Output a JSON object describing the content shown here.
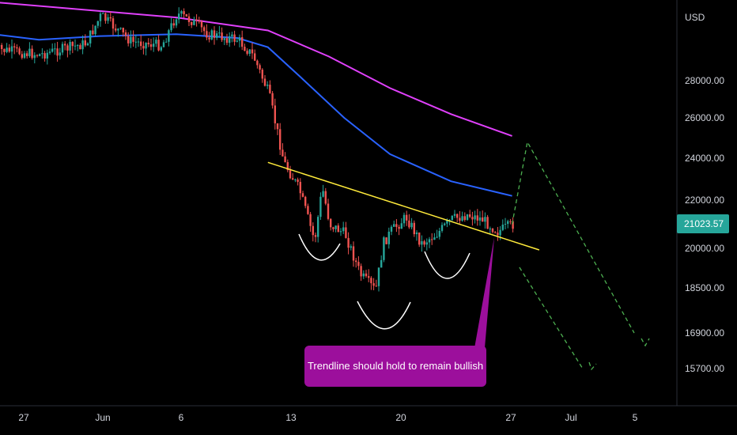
{
  "chart_data": {
    "type": "candlestick",
    "currency": "USD",
    "last_price": "21023.57",
    "y_ticks": [
      "28000.00",
      "26000.00",
      "24000.00",
      "22000.00",
      "20000.00",
      "18500.00",
      "16900.00",
      "15700.00"
    ],
    "x_ticks": [
      "27",
      "Jun",
      "6",
      "13",
      "20",
      "27",
      "Jul",
      "5"
    ],
    "annotation": "Trendline should hold to remain bullish",
    "colors": {
      "up": "#26a69a",
      "down": "#ef5350",
      "ma_fast": "#2962ff",
      "ma_slow": "#e040fb",
      "trendline": "#ffeb3b",
      "projection": "#4caf50",
      "callout": "#9c0f9c",
      "price_tag": "#26a69a"
    },
    "price_path": [
      [
        "2022-05-25",
        29700
      ],
      [
        "2022-05-28",
        29400
      ],
      [
        "2022-05-31",
        30000
      ],
      [
        "2022-06-01",
        31500
      ],
      [
        "2022-06-03",
        30100
      ],
      [
        "2022-06-05",
        29900
      ],
      [
        "2022-06-06",
        31600
      ],
      [
        "2022-06-07",
        31200
      ],
      [
        "2022-06-08",
        30500
      ],
      [
        "2022-06-10",
        30200
      ],
      [
        "2022-06-11",
        29300
      ],
      [
        "2022-06-12",
        27300
      ],
      [
        "2022-06-13",
        23800
      ],
      [
        "2022-06-14",
        22500
      ],
      [
        "2022-06-15",
        20300
      ],
      [
        "2022-06-15T12:00",
        22600
      ],
      [
        "2022-06-16",
        21000
      ],
      [
        "2022-06-17",
        20600
      ],
      [
        "2022-06-18",
        19000
      ],
      [
        "2022-06-19",
        18400
      ],
      [
        "2022-06-19T12:00",
        20200
      ],
      [
        "2022-06-20",
        20700
      ],
      [
        "2022-06-21",
        21300
      ],
      [
        "2022-06-22",
        20200
      ],
      [
        "2022-06-23",
        20600
      ],
      [
        "2022-06-24",
        21200
      ],
      [
        "2022-06-25",
        21400
      ],
      [
        "2022-06-26",
        21200
      ],
      [
        "2022-06-27",
        20700
      ],
      [
        "2022-06-28",
        21000
      ]
    ],
    "ma_fast": [
      [
        "2022-05-24",
        30600
      ],
      [
        "2022-05-28",
        30200
      ],
      [
        "2022-06-01",
        30400
      ],
      [
        "2022-06-06",
        30500
      ],
      [
        "2022-06-10",
        30300
      ],
      [
        "2022-06-12",
        29800
      ],
      [
        "2022-06-14",
        28300
      ],
      [
        "2022-06-17",
        26000
      ],
      [
        "2022-06-20",
        24200
      ],
      [
        "2022-06-24",
        22900
      ],
      [
        "2022-06-28",
        22200
      ]
    ],
    "ma_slow": [
      [
        "2022-05-24",
        32300
      ],
      [
        "2022-06-06",
        31400
      ],
      [
        "2022-06-12",
        30700
      ],
      [
        "2022-06-16",
        29300
      ],
      [
        "2022-06-20",
        27600
      ],
      [
        "2022-06-24",
        26200
      ],
      [
        "2022-06-28",
        25100
      ]
    ],
    "trendline": [
      [
        "2022-06-12",
        23800
      ],
      [
        "2022-06-29",
        20000
      ]
    ],
    "projection_up": [
      [
        "2022-06-28",
        21000
      ],
      [
        "2022-06-29",
        24800
      ],
      [
        "2022-07-06",
        16900
      ]
    ],
    "projection_down": [
      [
        "2022-06-29",
        20000
      ],
      [
        "2022-07-02",
        15700
      ]
    ],
    "pattern_arcs": [
      "left-shoulder",
      "head",
      "right-shoulder"
    ]
  }
}
